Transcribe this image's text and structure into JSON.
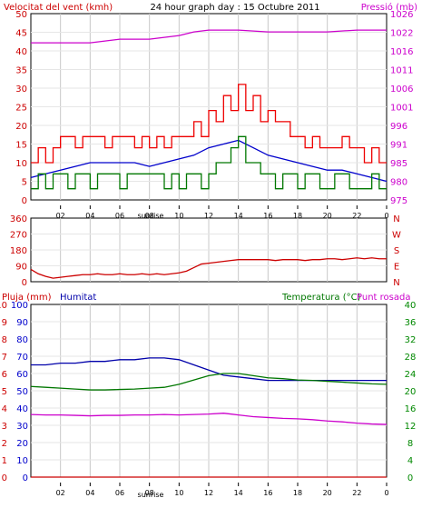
{
  "header": {
    "left_title": "Velocitat del vent (kmh)",
    "center_title": "24 hour graph day : 15 Octubre 2011",
    "right_title": "Pressió (mb)"
  },
  "colors": {
    "background": "#ffffff",
    "grid": "#c8c8c8",
    "frame": "#000000",
    "wind_gust": "#ee0000",
    "wind_avg": "#0000cc",
    "wind_min": "#007700",
    "pressure": "#cc00cc",
    "direction": "#cc0000",
    "rain": "#cc0000",
    "humidity": "#0000aa",
    "temperature": "#007700",
    "dewpoint": "#cc00cc",
    "left_axis": "#cc0000",
    "right_axis": "#cc00cc",
    "humidity_axis": "#0000cc",
    "temp_axis": "#008800"
  },
  "x_axis": {
    "ticks": [
      "02",
      "04",
      "06",
      "08",
      "10",
      "12",
      "14",
      "16",
      "18",
      "20",
      "22",
      "0"
    ],
    "sunrise_label": "sunrise",
    "range_hours": [
      0,
      24
    ]
  },
  "panels": {
    "wind": {
      "left_ticks": [
        "50",
        "45",
        "40",
        "35",
        "30",
        "25",
        "20",
        "15",
        "10",
        "5",
        "0"
      ],
      "right_ticks": [
        "1026",
        "1022",
        "1016",
        "1011",
        "1006",
        "1001",
        "996",
        "991",
        "985",
        "980",
        "975"
      ]
    },
    "direction": {
      "left_ticks": [
        "360",
        "270",
        "180",
        "90",
        "0"
      ],
      "right_ticks": [
        "N",
        "W",
        "S",
        "E",
        "N"
      ]
    },
    "climate": {
      "legend_rain": "Pluja (mm)",
      "legend_humidity": "Humitat",
      "legend_temp": "Temperatura (°C)",
      "legend_dew": "Punt rosada",
      "rain_ticks": [
        "10",
        "9",
        "8",
        "7",
        "6",
        "5",
        "4",
        "3",
        "2",
        "1",
        "0"
      ],
      "humidity_ticks": [
        "100",
        "90",
        "80",
        "70",
        "60",
        "50",
        "40",
        "30",
        "20",
        "10",
        "0"
      ],
      "temp_ticks": [
        "40",
        "36",
        "32",
        "28",
        "24",
        "20",
        "16",
        "12",
        "8",
        "4",
        "0"
      ]
    }
  },
  "chart_data": [
    {
      "type": "line",
      "title": "24 hour graph day : 15 Octubre 2011",
      "xlabel": "",
      "ylabel": "Velocitat del vent (kmh)",
      "y2label": "Pressió (mb)",
      "ylim": [
        0,
        50
      ],
      "y2lim": [
        975,
        1026
      ],
      "grid": true,
      "series": [
        {
          "name": "",
          "axis": "left",
          "style": "step",
          "x": [
            0,
            0.5,
            1,
            1.5,
            2,
            2.5,
            3,
            3.5,
            4,
            4.5,
            5,
            5.5,
            6,
            6.5,
            7,
            7.5,
            8,
            8.5,
            9,
            9.5,
            10,
            10.5,
            11,
            11.5,
            12,
            12.5,
            13,
            13.5,
            14,
            14.5,
            15,
            15.5,
            16,
            16.5,
            17,
            17.5,
            18,
            18.5,
            19,
            19.5,
            20,
            20.5,
            21,
            21.5,
            22,
            22.5,
            23,
            23.5,
            24
          ],
          "y": [
            10,
            14,
            10,
            14,
            17,
            17,
            14,
            17,
            17,
            17,
            14,
            17,
            17,
            17,
            14,
            17,
            14,
            17,
            14,
            17,
            17,
            17,
            21,
            17,
            24,
            21,
            28,
            24,
            31,
            24,
            28,
            21,
            24,
            21,
            21,
            17,
            17,
            14,
            17,
            14,
            14,
            14,
            17,
            14,
            14,
            10,
            14,
            10,
            10
          ]
        },
        {
          "name": "",
          "axis": "left",
          "style": "line",
          "x": [
            0,
            1,
            2,
            3,
            4,
            5,
            6,
            7,
            8,
            9,
            10,
            11,
            12,
            13,
            14,
            15,
            16,
            17,
            18,
            19,
            20,
            21,
            22,
            23,
            24
          ],
          "y": [
            6,
            7,
            8,
            9,
            10,
            10,
            10,
            10,
            9,
            10,
            11,
            12,
            14,
            15,
            16,
            14,
            12,
            11,
            10,
            9,
            8,
            8,
            7,
            6,
            5
          ]
        },
        {
          "name": "",
          "axis": "left",
          "style": "step",
          "x": [
            0,
            0.5,
            1,
            1.5,
            2,
            2.5,
            3,
            3.5,
            4,
            4.5,
            5,
            5.5,
            6,
            6.5,
            7,
            7.5,
            8,
            8.5,
            9,
            9.5,
            10,
            10.5,
            11,
            11.5,
            12,
            12.5,
            13,
            13.5,
            14,
            14.5,
            15,
            15.5,
            16,
            16.5,
            17,
            17.5,
            18,
            18.5,
            19,
            19.5,
            20,
            20.5,
            21,
            21.5,
            22,
            22.5,
            23,
            23.5,
            24
          ],
          "y": [
            3,
            7,
            3,
            7,
            7,
            3,
            7,
            7,
            3,
            7,
            7,
            7,
            3,
            7,
            7,
            7,
            7,
            7,
            3,
            7,
            3,
            7,
            7,
            3,
            7,
            10,
            10,
            14,
            17,
            10,
            10,
            7,
            7,
            3,
            7,
            7,
            3,
            7,
            7,
            3,
            3,
            7,
            7,
            3,
            3,
            3,
            7,
            3,
            3
          ]
        },
        {
          "name": "",
          "axis": "right",
          "style": "line",
          "x": [
            0,
            2,
            4,
            6,
            8,
            10,
            11,
            12,
            13,
            14,
            16,
            18,
            20,
            22,
            24
          ],
          "y": [
            1018,
            1018,
            1018,
            1019,
            1019,
            1020,
            1021,
            1021.5,
            1021.5,
            1021.5,
            1021,
            1021,
            1021,
            1021.5,
            1021.5
          ]
        }
      ]
    },
    {
      "type": "line",
      "title": "",
      "ylabel": "",
      "ylim": [
        0,
        360
      ],
      "grid": true,
      "series": [
        {
          "name": "",
          "x": [
            0,
            0.5,
            1,
            1.5,
            2,
            2.5,
            3,
            3.5,
            4,
            4.5,
            5,
            5.5,
            6,
            6.5,
            7,
            7.5,
            8,
            8.5,
            9,
            9.5,
            10,
            10.5,
            11,
            11.5,
            12,
            12.5,
            13,
            13.5,
            14,
            14.5,
            15,
            15.5,
            16,
            16.5,
            17,
            17.5,
            18,
            18.5,
            19,
            19.5,
            20,
            20.5,
            21,
            21.5,
            22,
            22.5,
            23,
            23.5,
            24
          ],
          "y": [
            70,
            45,
            30,
            20,
            25,
            30,
            35,
            40,
            40,
            45,
            40,
            40,
            45,
            40,
            40,
            45,
            40,
            45,
            40,
            45,
            50,
            60,
            80,
            100,
            105,
            110,
            115,
            120,
            125,
            125,
            125,
            125,
            125,
            120,
            125,
            125,
            125,
            120,
            125,
            125,
            130,
            130,
            125,
            130,
            135,
            130,
            135,
            130,
            130
          ]
        }
      ]
    },
    {
      "type": "line",
      "title": "",
      "ylabel": "Pluja (mm)",
      "y2label": "Temperatura (°C)",
      "ylim": [
        0,
        10
      ],
      "y2lim": [
        0,
        40
      ],
      "humidity_lim": [
        0,
        100
      ],
      "grid": true,
      "series": [
        {
          "name": "Pluja (mm)",
          "axis": "rain",
          "x": [
            0,
            24
          ],
          "y": [
            0,
            0
          ]
        },
        {
          "name": "Humitat",
          "axis": "humidity",
          "x": [
            0,
            1,
            2,
            3,
            4,
            5,
            6,
            7,
            8,
            9,
            10,
            11,
            12,
            13,
            14,
            15,
            16,
            17,
            18,
            19,
            20,
            21,
            22,
            23,
            24
          ],
          "y": [
            65,
            65,
            66,
            66,
            67,
            67,
            68,
            68,
            69,
            69,
            68,
            65,
            62,
            59,
            58,
            57,
            56,
            56,
            56,
            56,
            56,
            56,
            56,
            56,
            56
          ]
        },
        {
          "name": "Temperatura (°C)",
          "axis": "temp",
          "x": [
            0,
            1,
            2,
            3,
            4,
            5,
            6,
            7,
            8,
            9,
            10,
            11,
            12,
            13,
            14,
            15,
            16,
            17,
            18,
            19,
            20,
            21,
            22,
            23,
            24
          ],
          "y": [
            21,
            20.8,
            20.6,
            20.4,
            20.2,
            20.2,
            20.3,
            20.4,
            20.6,
            20.8,
            21.5,
            22.5,
            23.5,
            24,
            24,
            23.5,
            23,
            22.8,
            22.5,
            22.4,
            22.2,
            22,
            21.8,
            21.6,
            21.5
          ]
        },
        {
          "name": "Punt rosada",
          "axis": "temp",
          "x": [
            0,
            1,
            2,
            3,
            4,
            5,
            6,
            7,
            8,
            9,
            10,
            11,
            12,
            13,
            14,
            15,
            16,
            17,
            18,
            19,
            20,
            21,
            22,
            23,
            24
          ],
          "y": [
            14.5,
            14.4,
            14.4,
            14.3,
            14.2,
            14.3,
            14.3,
            14.4,
            14.4,
            14.5,
            14.4,
            14.5,
            14.6,
            14.8,
            14.4,
            14,
            13.8,
            13.6,
            13.5,
            13.3,
            13,
            12.8,
            12.5,
            12.3,
            12.2
          ]
        }
      ]
    }
  ]
}
